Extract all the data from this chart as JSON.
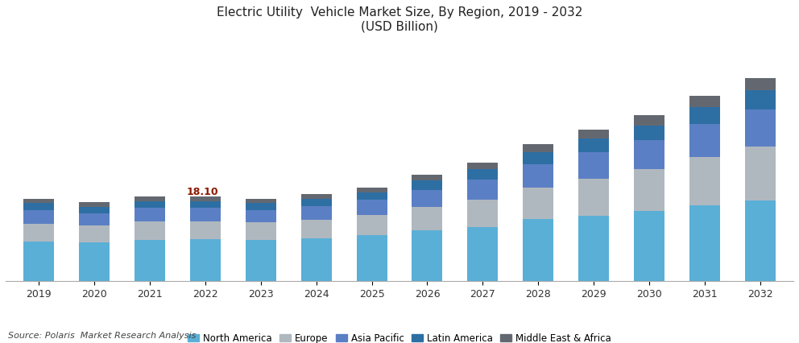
{
  "title_line1": "Electric Utility  Vehicle Market Size, By Region, 2019 - 2032",
  "title_line2": "(USD Billion)",
  "source": "Source: Polaris  Market Research Analysis",
  "years": [
    2019,
    2020,
    2021,
    2022,
    2023,
    2024,
    2025,
    2026,
    2027,
    2028,
    2029,
    2030,
    2031,
    2032
  ],
  "annotation_year": 2022,
  "annotation_text": "18.10",
  "regions": [
    "North America",
    "Europe",
    "Asia Pacific",
    "Latin America",
    "Middle East & Africa"
  ],
  "colors": [
    "#5aafd6",
    "#b0b8bf",
    "#5b7fc4",
    "#2e6fa3",
    "#636870"
  ],
  "data": {
    "North America": [
      8.5,
      8.2,
      8.8,
      9.0,
      8.8,
      9.2,
      9.8,
      10.8,
      11.5,
      13.2,
      14.0,
      15.0,
      16.2,
      17.2
    ],
    "Europe": [
      3.8,
      3.6,
      3.9,
      3.8,
      3.7,
      3.9,
      4.3,
      5.0,
      5.8,
      6.8,
      7.8,
      8.8,
      10.2,
      11.5
    ],
    "Asia Pacific": [
      2.8,
      2.7,
      2.9,
      2.8,
      2.7,
      2.9,
      3.2,
      3.7,
      4.3,
      4.9,
      5.6,
      6.2,
      7.0,
      7.8
    ],
    "Latin America": [
      1.5,
      1.4,
      1.5,
      1.4,
      1.4,
      1.5,
      1.6,
      1.9,
      2.2,
      2.5,
      2.9,
      3.2,
      3.7,
      4.1
    ],
    "Middle East & Africa": [
      0.9,
      0.9,
      1.0,
      1.1,
      1.0,
      1.0,
      1.1,
      1.3,
      1.5,
      1.7,
      1.9,
      2.1,
      2.4,
      2.7
    ]
  },
  "figsize": [
    9.92,
    4.26
  ],
  "dpi": 100,
  "bar_width": 0.55,
  "title_fontsize": 11,
  "legend_fontsize": 8.5,
  "tick_fontsize": 9,
  "source_fontsize": 8
}
